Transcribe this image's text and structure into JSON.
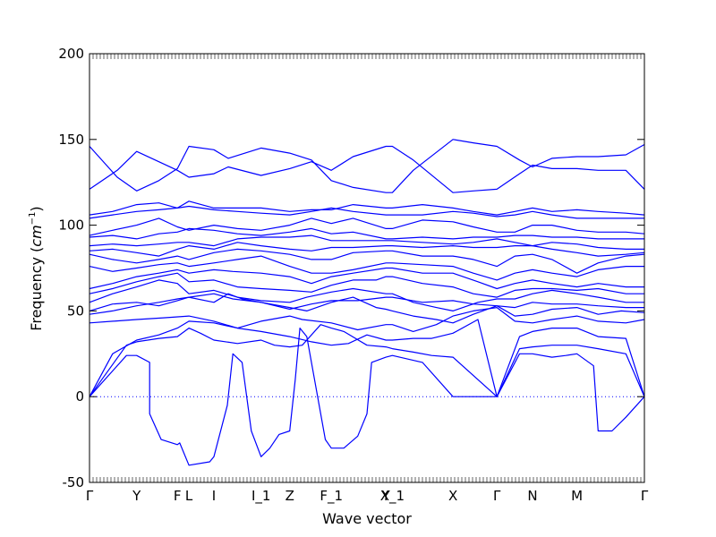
{
  "chart_data": {
    "type": "line",
    "title": "",
    "xlabel": "Wave vector",
    "ylabel": "Frequency (cm⁻¹)",
    "ylabel_text": "Frequency (",
    "ylabel_unit_base": "cm",
    "ylabel_unit_exp": "−1",
    "ylabel_close": ")",
    "ylim": [
      -50,
      200
    ],
    "yticks": [
      -50,
      0,
      50,
      100,
      150,
      200
    ],
    "xlim": [
      0,
      12.0
    ],
    "high_symmetry_points": [
      {
        "label": "Γ",
        "x": 0.0
      },
      {
        "label": "Y",
        "x": 1.02
      },
      {
        "label": "F",
        "x": 1.9
      },
      {
        "label": "L",
        "x": 2.15
      },
      {
        "label": "I",
        "x": 2.69
      },
      {
        "label": "I_1",
        "x": 3.71
      },
      {
        "label": "Z",
        "x": 4.33
      },
      {
        "label": "F_1",
        "x": 5.23
      },
      {
        "label": "Y",
        "x": 6.41
      },
      {
        "label": "X_1",
        "x": 6.55
      },
      {
        "label": "X",
        "x": 7.86
      },
      {
        "label": "Γ",
        "x": 8.81
      },
      {
        "label": "N",
        "x": 9.58
      },
      {
        "label": "M",
        "x": 10.54
      },
      {
        "label": "Γ",
        "x": 12.0
      }
    ],
    "zero_line": true,
    "line_color": "#0000ff",
    "series": [
      {
        "x": [
          0,
          0.8,
          1.02,
          1.3,
          1.3,
          1.55,
          1.9,
          1.95,
          2.15,
          2.6,
          2.69,
          2.98,
          3.1,
          3.3,
          3.5,
          3.71,
          3.9,
          4.1,
          4.33,
          4.45,
          4.55,
          4.7,
          5.1,
          5.23,
          5.5,
          5.8,
          6.0,
          6.1,
          6.41,
          6.55,
          7.2,
          7.86,
          8.81,
          9.3,
          9.58,
          10.0,
          10.3,
          10.54,
          10.9,
          11.0,
          11.3,
          11.6,
          12.0
        ],
        "y": [
          0,
          24,
          24,
          20,
          -10,
          -25,
          -28,
          -27,
          -40,
          -38,
          -35,
          -5,
          25,
          20,
          -20,
          -35,
          -30,
          -22,
          -20,
          10,
          40,
          35,
          -25,
          -30,
          -30,
          -23,
          -10,
          20,
          23,
          24,
          20,
          0,
          0,
          25,
          25,
          23,
          24,
          25,
          18,
          -20,
          -20,
          -12,
          0
        ]
      },
      {
        "x": [
          0,
          0.8,
          1.02,
          1.5,
          1.9,
          2.15,
          2.4,
          2.69,
          3.2,
          3.71,
          4.0,
          4.33,
          4.6,
          5.0,
          5.23,
          5.5,
          6.0,
          6.41,
          6.55,
          7.0,
          7.4,
          7.86,
          8.81,
          9.3,
          9.58,
          10.0,
          10.54,
          11.0,
          11.6,
          12.0
        ],
        "y": [
          0,
          30,
          32,
          34,
          35,
          40,
          37,
          33,
          31,
          33,
          30,
          29,
          30,
          42,
          40,
          38,
          30,
          29,
          28,
          26,
          24,
          23,
          0,
          28,
          29,
          30,
          30,
          28,
          25,
          0
        ]
      },
      {
        "x": [
          0,
          0.5,
          1.02,
          1.5,
          1.9,
          2.15,
          2.69,
          3.2,
          3.71,
          4.33,
          4.8,
          5.23,
          5.6,
          6.0,
          6.41,
          6.55,
          7.0,
          7.4,
          7.86,
          8.4,
          8.81,
          9.3,
          9.58,
          10.0,
          10.54,
          11.0,
          11.6,
          12.0
        ],
        "y": [
          0,
          25,
          33,
          36,
          40,
          44,
          43,
          40,
          38,
          35,
          32,
          30,
          31,
          36,
          33,
          33,
          34,
          34,
          37,
          45,
          0,
          35,
          38,
          40,
          40,
          35,
          34,
          0
        ]
      },
      {
        "x": [
          0,
          1.02,
          1.6,
          2.15,
          2.69,
          3.2,
          3.71,
          4.33,
          4.6,
          5.23,
          5.8,
          6.41,
          6.55,
          7.0,
          7.5,
          7.86,
          8.3,
          8.81,
          9.2,
          9.58,
          10.0,
          10.54,
          11.0,
          11.6,
          12.0
        ],
        "y": [
          43,
          45,
          46,
          47,
          44,
          40,
          44,
          47,
          45,
          43,
          39,
          42,
          42,
          38,
          42,
          47,
          50,
          52,
          44,
          43,
          45,
          47,
          44,
          43,
          45
        ]
      },
      {
        "x": [
          0,
          0.5,
          1.02,
          1.5,
          1.9,
          2.15,
          2.69,
          3.0,
          3.3,
          3.71,
          4.33,
          4.7,
          5.23,
          5.7,
          6.2,
          6.41,
          6.55,
          7.0,
          7.5,
          7.86,
          8.3,
          8.81,
          9.2,
          9.58,
          10.0,
          10.54,
          11.0,
          11.5,
          12.0
        ],
        "y": [
          48,
          50,
          53,
          55,
          57,
          58,
          55,
          60,
          57,
          55,
          52,
          50,
          55,
          58,
          52,
          51,
          50,
          47,
          45,
          43,
          48,
          53,
          47,
          48,
          51,
          52,
          48,
          50,
          49
        ]
      },
      {
        "x": [
          0,
          0.5,
          1.02,
          1.5,
          1.9,
          2.15,
          2.69,
          3.1,
          3.71,
          4.33,
          4.8,
          5.23,
          5.8,
          6.41,
          6.55,
          7.2,
          7.86,
          8.3,
          8.81,
          9.2,
          9.58,
          10.0,
          10.54,
          11.0,
          11.6,
          12.0
        ],
        "y": [
          50,
          54,
          55,
          53,
          56,
          58,
          60,
          57,
          55,
          51,
          54,
          56,
          56,
          58,
          58,
          55,
          56,
          54,
          53,
          52,
          55,
          54,
          54,
          53,
          52,
          52
        ]
      },
      {
        "x": [
          0,
          0.5,
          1.02,
          1.5,
          1.9,
          2.15,
          2.69,
          3.2,
          3.71,
          4.33,
          4.7,
          5.23,
          5.7,
          6.41,
          6.55,
          7.0,
          7.5,
          7.86,
          8.4,
          8.81,
          9.2,
          9.58,
          10.0,
          10.54,
          11.0,
          11.6,
          12.0
        ],
        "y": [
          55,
          60,
          64,
          68,
          66,
          60,
          62,
          58,
          56,
          55,
          58,
          61,
          63,
          60,
          60,
          55,
          52,
          50,
          55,
          57,
          57,
          60,
          62,
          60,
          58,
          55,
          55
        ]
      },
      {
        "x": [
          0,
          0.5,
          1.02,
          1.5,
          1.9,
          2.15,
          2.69,
          3.2,
          3.71,
          4.33,
          4.8,
          5.23,
          5.7,
          6.2,
          6.41,
          6.55,
          7.2,
          7.86,
          8.3,
          8.81,
          9.2,
          9.58,
          10.0,
          10.54,
          11.0,
          11.6,
          12.0
        ],
        "y": [
          60,
          63,
          67,
          70,
          72,
          67,
          68,
          64,
          63,
          62,
          61,
          65,
          68,
          68,
          70,
          70,
          66,
          64,
          60,
          58,
          62,
          63,
          63,
          62,
          63,
          60,
          60
        ]
      },
      {
        "x": [
          0,
          0.5,
          1.02,
          1.5,
          1.9,
          2.15,
          2.69,
          3.1,
          3.71,
          4.33,
          4.8,
          5.23,
          5.7,
          6.41,
          6.55,
          7.2,
          7.86,
          8.4,
          8.81,
          9.2,
          9.58,
          10.0,
          10.54,
          11.0,
          11.6,
          12.0
        ],
        "y": [
          63,
          66,
          70,
          72,
          74,
          72,
          74,
          73,
          72,
          70,
          66,
          70,
          72,
          75,
          75,
          72,
          72,
          67,
          63,
          66,
          68,
          66,
          64,
          66,
          64,
          64
        ]
      },
      {
        "x": [
          0,
          0.5,
          1.02,
          1.5,
          1.9,
          2.15,
          2.69,
          3.2,
          3.71,
          4.33,
          4.8,
          5.23,
          5.7,
          6.41,
          6.55,
          7.2,
          7.86,
          8.3,
          8.81,
          9.2,
          9.58,
          10.0,
          10.54,
          11.0,
          11.6,
          12.0
        ],
        "y": [
          76,
          73,
          75,
          77,
          78,
          76,
          78,
          80,
          82,
          76,
          72,
          72,
          74,
          78,
          78,
          77,
          76,
          72,
          68,
          72,
          74,
          72,
          70,
          74,
          76,
          76
        ]
      },
      {
        "x": [
          0,
          0.5,
          1.02,
          1.5,
          1.9,
          2.15,
          2.69,
          3.2,
          3.71,
          4.33,
          4.8,
          5.23,
          5.7,
          6.41,
          6.55,
          7.2,
          7.86,
          8.3,
          8.81,
          9.2,
          9.58,
          10.0,
          10.54,
          11.0,
          11.6,
          12.0
        ],
        "y": [
          83,
          80,
          78,
          80,
          82,
          80,
          84,
          86,
          85,
          83,
          80,
          80,
          84,
          85,
          85,
          82,
          82,
          80,
          76,
          82,
          83,
          80,
          72,
          78,
          82,
          83
        ]
      },
      {
        "x": [
          0,
          0.5,
          1.02,
          1.5,
          1.9,
          2.15,
          2.69,
          3.2,
          3.71,
          4.33,
          4.8,
          5.23,
          5.7,
          6.41,
          6.55,
          7.2,
          7.86,
          8.3,
          8.81,
          9.2,
          9.58,
          10.0,
          10.54,
          11.0,
          11.6,
          12.0
        ],
        "y": [
          85,
          86,
          84,
          82,
          86,
          88,
          86,
          90,
          88,
          86,
          85,
          87,
          87,
          88,
          88,
          87,
          88,
          87,
          87,
          88,
          88,
          86,
          84,
          82,
          83,
          84
        ]
      },
      {
        "x": [
          0,
          0.5,
          1.02,
          1.5,
          1.9,
          2.15,
          2.69,
          3.2,
          3.71,
          4.33,
          4.8,
          5.23,
          5.7,
          6.41,
          6.55,
          7.2,
          7.86,
          8.3,
          8.81,
          9.2,
          9.58,
          10.0,
          10.54,
          11.0,
          11.6,
          12.0
        ],
        "y": [
          88,
          89,
          88,
          89,
          90,
          90,
          88,
          92,
          93,
          93,
          94,
          91,
          91,
          91,
          91,
          90,
          89,
          90,
          92,
          90,
          88,
          90,
          89,
          87,
          86,
          86
        ]
      },
      {
        "x": [
          0,
          0.5,
          1.02,
          1.5,
          1.9,
          2.15,
          2.69,
          3.2,
          3.71,
          4.33,
          4.8,
          5.23,
          5.7,
          6.41,
          6.55,
          7.2,
          7.86,
          8.3,
          8.81,
          9.2,
          9.58,
          10.0,
          10.54,
          11.0,
          11.6,
          12.0
        ],
        "y": [
          93,
          94,
          92,
          95,
          96,
          98,
          97,
          95,
          94,
          96,
          98,
          95,
          96,
          92,
          92,
          93,
          92,
          93,
          93,
          94,
          94,
          93,
          93,
          92,
          92,
          92
        ]
      },
      {
        "x": [
          0,
          0.5,
          1.02,
          1.5,
          1.9,
          2.15,
          2.69,
          3.2,
          3.71,
          4.33,
          4.8,
          5.23,
          5.7,
          6.41,
          6.55,
          7.2,
          7.86,
          8.3,
          8.81,
          9.2,
          9.58,
          10.0,
          10.54,
          11.0,
          11.6,
          12.0
        ],
        "y": [
          94,
          97,
          100,
          104,
          99,
          97,
          100,
          98,
          97,
          100,
          104,
          101,
          104,
          98,
          98,
          103,
          102,
          99,
          96,
          96,
          100,
          100,
          97,
          96,
          96,
          95
        ]
      },
      {
        "x": [
          0,
          0.5,
          1.02,
          1.5,
          1.9,
          2.15,
          2.69,
          3.2,
          3.71,
          4.33,
          4.8,
          5.23,
          5.7,
          6.41,
          6.55,
          7.2,
          7.86,
          8.3,
          8.81,
          9.2,
          9.58,
          10.0,
          10.54,
          11.0,
          11.6,
          12.0
        ],
        "y": [
          104,
          106,
          108,
          109,
          110,
          111,
          109,
          108,
          107,
          106,
          108,
          110,
          108,
          106,
          106,
          106,
          108,
          107,
          105,
          106,
          108,
          106,
          104,
          104,
          104,
          104
        ]
      },
      {
        "x": [
          0,
          0.5,
          1.02,
          1.5,
          1.9,
          2.15,
          2.69,
          3.2,
          3.71,
          4.33,
          4.8,
          5.23,
          5.7,
          6.41,
          6.55,
          7.2,
          7.86,
          8.3,
          8.81,
          9.2,
          9.58,
          10.0,
          10.54,
          11.0,
          11.6,
          12.0
        ],
        "y": [
          106,
          108,
          112,
          113,
          110,
          114,
          110,
          110,
          110,
          108,
          109,
          109,
          112,
          110,
          110,
          112,
          110,
          108,
          106,
          108,
          110,
          108,
          109,
          108,
          107,
          106
        ]
      },
      {
        "x": [
          0,
          0.6,
          1.02,
          1.5,
          1.9,
          2.15,
          2.69,
          3.0,
          3.71,
          4.33,
          4.8,
          5.23,
          5.7,
          6.41,
          6.55,
          7.0,
          7.86,
          8.3,
          8.81,
          9.3,
          9.58,
          10.0,
          10.54,
          11.0,
          11.6,
          12.0
        ],
        "y": [
          121,
          132,
          143,
          137,
          132,
          128,
          130,
          134,
          129,
          133,
          137,
          132,
          140,
          146,
          146,
          138,
          119,
          120,
          121,
          130,
          135,
          133,
          133,
          132,
          132,
          121
        ]
      },
      {
        "x": [
          0,
          0.6,
          1.02,
          1.5,
          1.9,
          2.15,
          2.69,
          3.0,
          3.71,
          4.33,
          4.8,
          5.23,
          5.7,
          6.41,
          6.55,
          7.0,
          7.86,
          8.3,
          8.81,
          9.3,
          9.58,
          10.0,
          10.54,
          11.0,
          11.6,
          12.0
        ],
        "y": [
          146,
          128,
          120,
          126,
          133,
          146,
          144,
          139,
          145,
          142,
          138,
          126,
          122,
          119,
          119,
          132,
          150,
          148,
          146,
          138,
          134,
          139,
          140,
          140,
          141,
          147
        ]
      }
    ]
  }
}
